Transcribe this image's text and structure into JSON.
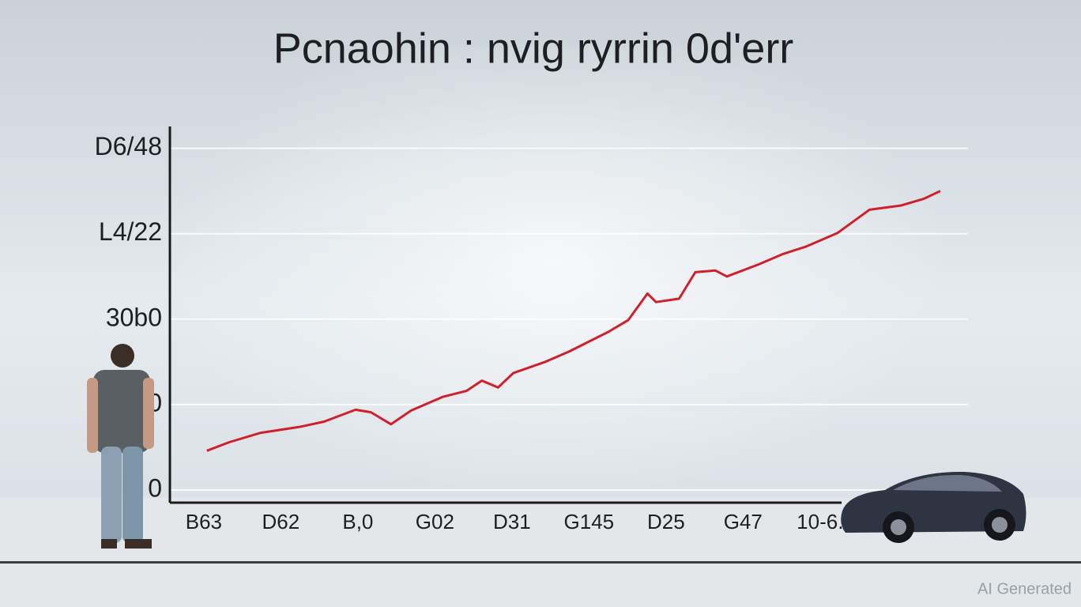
{
  "chart_data": {
    "type": "line",
    "title": "Pcnaohin : nvig ryrrin 0d'err",
    "watermark": "AI Generated",
    "x": [
      0.04,
      0.33,
      0.74,
      1.25,
      1.56,
      1.97,
      2.17,
      2.43,
      2.69,
      3.1,
      3.41,
      3.61,
      3.82,
      4.02,
      4.43,
      4.74,
      5.25,
      5.51,
      5.76,
      5.87,
      6.17,
      6.38,
      6.64,
      6.79,
      7.2,
      7.51,
      7.82,
      8.23,
      8.64,
      9.05,
      9.35,
      9.56
    ],
    "values": [
      4.6,
      5.6,
      6.7,
      7.4,
      8.0,
      9.4,
      9.1,
      7.7,
      9.3,
      10.9,
      11.6,
      12.8,
      12.0,
      13.7,
      15.0,
      16.2,
      18.5,
      19.9,
      23.0,
      22.0,
      22.4,
      25.5,
      25.7,
      25.0,
      26.4,
      27.6,
      28.5,
      30.1,
      32.8,
      33.3,
      34.1,
      35.0
    ],
    "color": "#d0202c",
    "xlim": [
      -0.44,
      9.92
    ],
    "xticks": [
      {
        "value": 0,
        "label": "B63"
      },
      {
        "value": 1,
        "label": "D62"
      },
      {
        "value": 2,
        "label": "B,0"
      },
      {
        "value": 3,
        "label": "G02"
      },
      {
        "value": 4,
        "label": "D31"
      },
      {
        "value": 5,
        "label": "G145"
      },
      {
        "value": 6,
        "label": "D25"
      },
      {
        "value": 7,
        "label": "G47"
      },
      {
        "value": 8,
        "label": "10-6."
      }
    ],
    "ylim": [
      0,
      42
    ],
    "yticks": [
      0,
      {
        "value": 10,
        "label": "0"
      },
      {
        "value": 20,
        "label": "30b0"
      },
      {
        "value": 30,
        "label": "L4/22"
      },
      {
        "value": 40,
        "label": "D6/48"
      }
    ],
    "grid": true
  }
}
